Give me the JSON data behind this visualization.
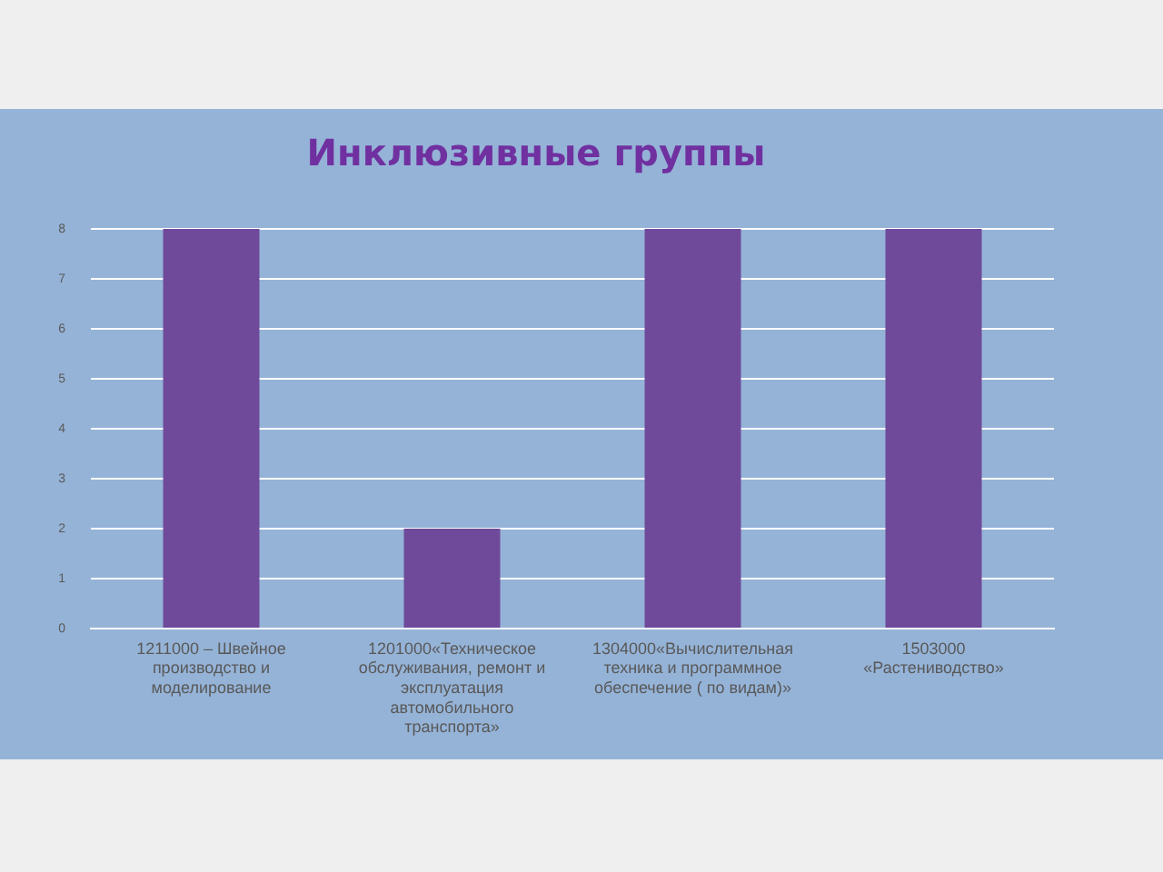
{
  "chart_data": {
    "type": "bar",
    "title": "Инклюзивные группы",
    "categories": [
      "1211000 – Швейное производство и моделирование",
      "1201000«Техническое обслуживания, ремонт и эксплуатация автомобильного транспорта»",
      "1304000«Вычислительная техника и программное обеспечение ( по видам)»",
      "1503000 «Растениводство»"
    ],
    "values": [
      8,
      2,
      8,
      8
    ],
    "color": "#6f4a9a",
    "ylim": [
      0,
      8
    ],
    "yticks": [
      0,
      1,
      2,
      3,
      4,
      5,
      6,
      7,
      8
    ],
    "grid": "y"
  }
}
